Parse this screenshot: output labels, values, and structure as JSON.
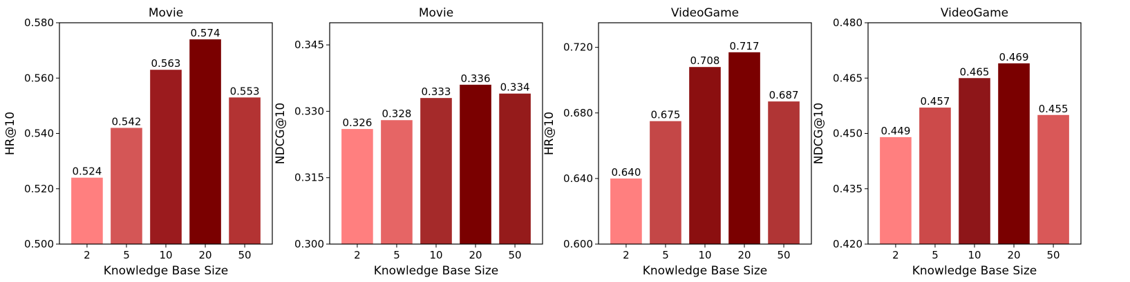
{
  "chart_data": [
    {
      "type": "bar",
      "title": "Movie",
      "xlabel": "Knowledge Base Size",
      "ylabel": "HR@10",
      "categories": [
        "2",
        "5",
        "10",
        "20",
        "50"
      ],
      "values": [
        0.524,
        0.542,
        0.563,
        0.574,
        0.553
      ],
      "data_labels": [
        "0.524",
        "0.542",
        "0.563",
        "0.574",
        "0.553"
      ],
      "ylim": [
        0.5,
        0.58
      ],
      "yticks": [
        0.5,
        0.52,
        0.54,
        0.56,
        0.58
      ],
      "ytick_labels": [
        "0.500",
        "0.520",
        "0.540",
        "0.560",
        "0.580"
      ],
      "colors": [
        "#ff7f7f",
        "#d45656",
        "#9b1b1e",
        "#7a0000",
        "#b33333"
      ],
      "grid": false
    },
    {
      "type": "bar",
      "title": "Movie",
      "xlabel": "Knowledge Base Size",
      "ylabel": "NDCG@10",
      "categories": [
        "2",
        "5",
        "10",
        "20",
        "50"
      ],
      "values": [
        0.326,
        0.328,
        0.333,
        0.336,
        0.334
      ],
      "data_labels": [
        "0.326",
        "0.328",
        "0.333",
        "0.336",
        "0.334"
      ],
      "ylim": [
        0.3,
        0.35
      ],
      "yticks": [
        0.3,
        0.315,
        0.33,
        0.345
      ],
      "ytick_labels": [
        "0.300",
        "0.315",
        "0.330",
        "0.345"
      ],
      "colors": [
        "#ff7f7f",
        "#e66565",
        "#a52a2a",
        "#7a0000",
        "#951b1b"
      ],
      "grid": false
    },
    {
      "type": "bar",
      "title": "VideoGame",
      "xlabel": "Knowledge Base Size",
      "ylabel": "HR@10",
      "categories": [
        "2",
        "5",
        "10",
        "20",
        "50"
      ],
      "values": [
        0.64,
        0.675,
        0.708,
        0.717,
        0.687
      ],
      "data_labels": [
        "0.640",
        "0.675",
        "0.708",
        "0.717",
        "0.687"
      ],
      "ylim": [
        0.6,
        0.735
      ],
      "yticks": [
        0.6,
        0.64,
        0.68,
        0.72
      ],
      "ytick_labels": [
        "0.600",
        "0.640",
        "0.680",
        "0.720"
      ],
      "colors": [
        "#ff7f7f",
        "#c44747",
        "#8b0f10",
        "#7a0000",
        "#b03535"
      ],
      "grid": false
    },
    {
      "type": "bar",
      "title": "VideoGame",
      "xlabel": "Knowledge Base Size",
      "ylabel": "NDCG@10",
      "categories": [
        "2",
        "5",
        "10",
        "20",
        "50"
      ],
      "values": [
        0.449,
        0.457,
        0.465,
        0.469,
        0.455
      ],
      "data_labels": [
        "0.449",
        "0.457",
        "0.465",
        "0.469",
        "0.455"
      ],
      "ylim": [
        0.42,
        0.48
      ],
      "yticks": [
        0.42,
        0.435,
        0.45,
        0.465,
        0.48
      ],
      "ytick_labels": [
        "0.420",
        "0.435",
        "0.450",
        "0.465",
        "0.480"
      ],
      "colors": [
        "#ff7f7f",
        "#cc4a4a",
        "#8e1619",
        "#7a0000",
        "#d95858"
      ],
      "grid": false
    }
  ]
}
